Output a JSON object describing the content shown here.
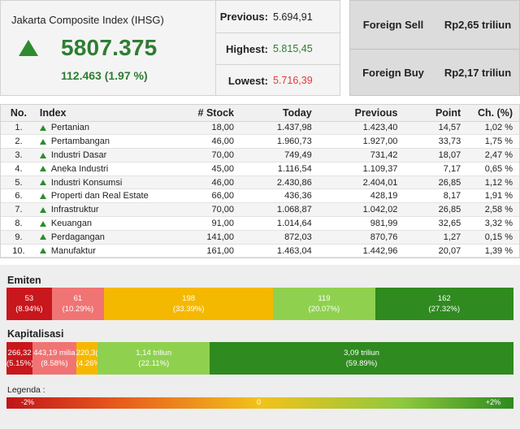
{
  "ihsg": {
    "title": "Jakarta Composite Index (IHSG)",
    "value": "5807.375",
    "change": "112.463 (1.97 %)",
    "trend_icon": "triangle-up-icon",
    "trend_color": "#2e8b2e"
  },
  "stats": {
    "previous_label": "Previous:",
    "previous_value": "5.694,91",
    "highest_label": "Highest:",
    "highest_value": "5.815,45",
    "lowest_label": "Lowest:",
    "lowest_value": "5.716,39",
    "highest_color": "#2e7d32",
    "lowest_color": "#e53935"
  },
  "foreign": {
    "sell_label": "Foreign Sell",
    "sell_value": "Rp2,65 triliun",
    "buy_label": "Foreign Buy",
    "buy_value": "Rp2,17 triliun"
  },
  "table": {
    "headers": [
      "No.",
      "Index",
      "# Stock",
      "Today",
      "Previous",
      "Point",
      "Ch. (%)"
    ],
    "rows": [
      {
        "no": "1.",
        "name": "Pertanian",
        "stock": "18,00",
        "today": "1.437,98",
        "previous": "1.423,40",
        "point": "14,57",
        "ch": "1,02 %"
      },
      {
        "no": "2.",
        "name": "Pertambangan",
        "stock": "46,00",
        "today": "1.960,73",
        "previous": "1.927,00",
        "point": "33,73",
        "ch": "1,75 %"
      },
      {
        "no": "3.",
        "name": "Industri Dasar",
        "stock": "70,00",
        "today": "749,49",
        "previous": "731,42",
        "point": "18,07",
        "ch": "2,47 %"
      },
      {
        "no": "4.",
        "name": "Aneka Industri",
        "stock": "45,00",
        "today": "1.116,54",
        "previous": "1.109,37",
        "point": "7,17",
        "ch": "0,65 %"
      },
      {
        "no": "5.",
        "name": "Industri Konsumsi",
        "stock": "46,00",
        "today": "2.430,86",
        "previous": "2.404,01",
        "point": "26,85",
        "ch": "1,12 %"
      },
      {
        "no": "6.",
        "name": "Properti dan Real Estate",
        "stock": "66,00",
        "today": "436,36",
        "previous": "428,19",
        "point": "8,17",
        "ch": "1,91 %"
      },
      {
        "no": "7.",
        "name": "Infrastruktur",
        "stock": "70,00",
        "today": "1.068,87",
        "previous": "1.042,02",
        "point": "26,85",
        "ch": "2,58 %"
      },
      {
        "no": "8.",
        "name": "Keuangan",
        "stock": "91,00",
        "today": "1.014,64",
        "previous": "981,99",
        "point": "32,65",
        "ch": "3,32 %"
      },
      {
        "no": "9.",
        "name": "Perdagangan",
        "stock": "141,00",
        "today": "872,03",
        "previous": "870,76",
        "point": "1,27",
        "ch": "0,15 %"
      },
      {
        "no": "10.",
        "name": "Manufaktur",
        "stock": "161,00",
        "today": "1.463,04",
        "previous": "1.442,96",
        "point": "20,07",
        "ch": "1,39 %"
      }
    ]
  },
  "emiten": {
    "title": "Emiten",
    "segments": [
      {
        "value": "53",
        "pct": "(8.94%)",
        "share": 8.94,
        "color": "#c8171d"
      },
      {
        "value": "61",
        "pct": "(10.29%)",
        "share": 10.29,
        "color": "#f07474"
      },
      {
        "value": "198",
        "pct": "(33.39%)",
        "share": 33.39,
        "color": "#f5b800"
      },
      {
        "value": "119",
        "pct": "(20.07%)",
        "share": 20.07,
        "color": "#8fd14f"
      },
      {
        "value": "162",
        "pct": "(27.32%)",
        "share": 27.32,
        "color": "#2f8a1f"
      }
    ]
  },
  "kapitalisasi": {
    "title": "Kapitalisasi",
    "segments": [
      {
        "value": "266,32",
        "pct": "(5.15%)",
        "share": 5.15,
        "color": "#c8171d"
      },
      {
        "value": "443,19 milia",
        "pct": "(8.58%)",
        "share": 8.58,
        "color": "#f07474"
      },
      {
        "value": "220,3(",
        "pct": "(4.26%",
        "share": 4.26,
        "color": "#f5b800"
      },
      {
        "value": "1,14 triliun",
        "pct": "(22.11%)",
        "share": 22.11,
        "color": "#8fd14f"
      },
      {
        "value": "3,09 triliun",
        "pct": "(59.89%)",
        "share": 59.89,
        "color": "#2f8a1f"
      }
    ]
  },
  "legend": {
    "label": "Legenda :",
    "min": "-2%",
    "mid": "0",
    "max": "+2%"
  }
}
